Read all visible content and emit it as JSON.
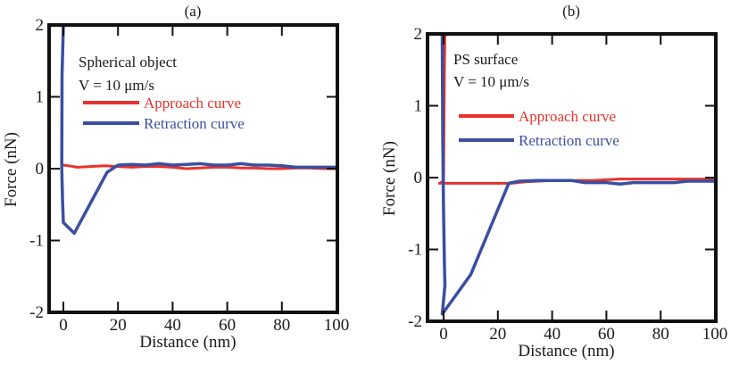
{
  "chart_data": [
    {
      "type": "line",
      "panel_label": "(a)",
      "xlabel": "Distance (nm)",
      "ylabel": "Force (nN)",
      "xlim": [
        -5,
        100
      ],
      "ylim": [
        -2,
        2
      ],
      "xticks": [
        0,
        20,
        40,
        60,
        80,
        100
      ],
      "yticks": [
        -2,
        -1,
        0,
        1,
        2
      ],
      "xtick_labels": [
        "0",
        "20",
        "40",
        "60",
        "80",
        "100"
      ],
      "ytick_labels": [
        "-2",
        "-1",
        "0",
        "1",
        "2"
      ],
      "grid": false,
      "annotations": [
        "Spherical object",
        "V = 10 μm/s"
      ],
      "legend_position": "top-center",
      "series": [
        {
          "name": "Approach curve",
          "color": "#e8312e",
          "x": [
            0,
            2,
            5,
            10,
            15,
            20,
            25,
            30,
            35,
            40,
            45,
            50,
            55,
            60,
            65,
            70,
            75,
            80,
            85,
            90,
            95,
            100
          ],
          "y": [
            0.05,
            0.04,
            0.02,
            0.03,
            0.04,
            0.03,
            0.02,
            0.03,
            0.03,
            0.02,
            0.0,
            0.01,
            0.02,
            0.02,
            0.01,
            0.01,
            0.0,
            0.0,
            0.01,
            0.01,
            0.0,
            0.0
          ]
        },
        {
          "name": "Retraction curve",
          "color": "#3a4fa0",
          "x": [
            0,
            -0.5,
            -0.6,
            -0.3,
            0,
            4,
            16,
            20,
            25,
            30,
            35,
            40,
            45,
            50,
            55,
            60,
            65,
            70,
            75,
            80,
            85,
            90,
            95,
            100
          ],
          "y": [
            2.0,
            1.3,
            0.0,
            -0.45,
            -0.75,
            -0.9,
            -0.05,
            0.05,
            0.06,
            0.05,
            0.07,
            0.05,
            0.06,
            0.07,
            0.05,
            0.05,
            0.07,
            0.05,
            0.05,
            0.04,
            0.02,
            0.02,
            0.02,
            0.02
          ]
        }
      ]
    },
    {
      "type": "line",
      "panel_label": "(b)",
      "xlabel": "Distance (nm)",
      "ylabel": "Force (nN)",
      "xlim": [
        -5,
        100
      ],
      "ylim": [
        -2,
        2
      ],
      "xticks": [
        0,
        20,
        40,
        60,
        80,
        100
      ],
      "yticks": [
        -2,
        -1,
        0,
        1,
        2
      ],
      "xtick_labels": [
        "0",
        "20",
        "40",
        "60",
        "80",
        "100"
      ],
      "ytick_labels": [
        "-2",
        "-1",
        "0",
        "1",
        "2"
      ],
      "grid": false,
      "annotations": [
        "PS surface",
        "V = 10 μm/s"
      ],
      "legend_position": "top-center",
      "series": [
        {
          "name": "Approach curve",
          "color": "#e8312e",
          "x": [
            0.5,
            0.3,
            0,
            -1.5,
            5,
            10,
            20,
            25,
            30,
            35,
            40,
            45,
            50,
            55,
            60,
            65,
            70,
            75,
            80,
            85,
            90,
            95,
            100
          ],
          "y": [
            2.0,
            1.5,
            -0.05,
            -0.08,
            -0.08,
            -0.08,
            -0.08,
            -0.08,
            -0.06,
            -0.05,
            -0.04,
            -0.04,
            -0.04,
            -0.04,
            -0.03,
            -0.02,
            -0.02,
            -0.02,
            -0.02,
            -0.02,
            -0.02,
            -0.02,
            -0.02
          ]
        },
        {
          "name": "Retraction curve",
          "color": "#3a4fa0",
          "x": [
            -0.5,
            -0.3,
            0,
            0.3,
            0.5,
            -0.5,
            10,
            24,
            28,
            35,
            40,
            47,
            52,
            60,
            65,
            70,
            80,
            85,
            90,
            95,
            100
          ],
          "y": [
            2.0,
            0.5,
            -0.5,
            -1.2,
            -1.5,
            -1.9,
            -1.35,
            -0.08,
            -0.05,
            -0.04,
            -0.04,
            -0.04,
            -0.07,
            -0.07,
            -0.09,
            -0.07,
            -0.07,
            -0.07,
            -0.05,
            -0.05,
            -0.05
          ]
        }
      ]
    }
  ]
}
